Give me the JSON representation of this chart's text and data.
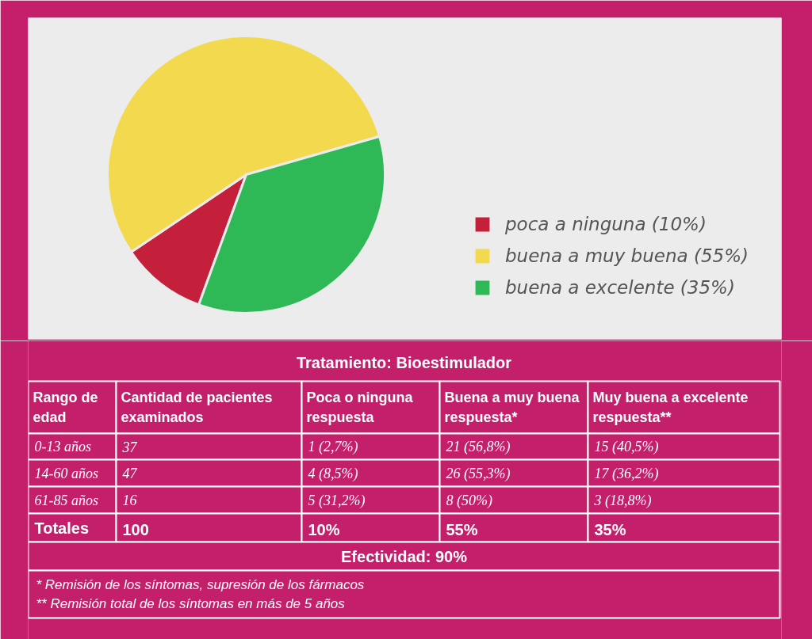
{
  "chart_data": [
    {
      "type": "pie",
      "categories": [
        "poca a ninguna (10%)",
        "buena a muy buena (55%)",
        "buena a excelente (35%)"
      ],
      "values": [
        10,
        55,
        35
      ],
      "colors": [
        "#c4203c",
        "#f2d94e",
        "#2fb956"
      ],
      "legend": "right"
    },
    {
      "type": "other",
      "title": "Tratamiento: Bioestimulador",
      "ylabel": "Rango de edad",
      "categories": [
        "Cantidad de pacientes examinados",
        "Poca o ninguna respuesta",
        "Buena a muy buena respuesta*",
        "Muy buena a excelente respuesta**"
      ],
      "y_categories": [
        "0-13 años",
        "14-60 años",
        "61-85 años",
        "Totales"
      ],
      "cell_labels": [
        [
          "37",
          "1 (2,7%)",
          "21 (56,8%)",
          "15 (40,5%)"
        ],
        [
          "47",
          "4 (8,5%)",
          "26 (55,3%)",
          "17 (36,2%)"
        ],
        [
          "16",
          "5 (31,2%)",
          "8 (50%)",
          "3 (18,8%)"
        ],
        [
          "100",
          "10%",
          "55%",
          "35%"
        ]
      ],
      "annotations": [
        "Efectividad: 90%",
        "* Remisión de los síntomas, supresión de los fármacos",
        "** Remisión total de los síntomas en más de 5 años"
      ]
    }
  ]
}
